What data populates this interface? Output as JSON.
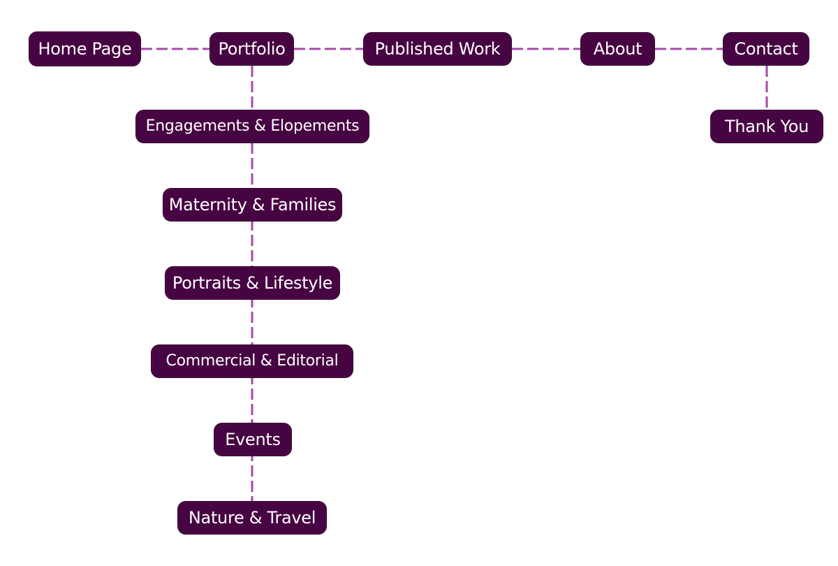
{
  "diagram": {
    "colors": {
      "node_fill": "#470442",
      "node_text": "#ffffff",
      "connector": "#a64aa8",
      "background": "#ffffff"
    },
    "top_level": [
      {
        "id": "home",
        "label": "Home Page"
      },
      {
        "id": "portfolio",
        "label": "Portfolio"
      },
      {
        "id": "published",
        "label": "Published Work"
      },
      {
        "id": "about",
        "label": "About"
      },
      {
        "id": "contact",
        "label": "Contact"
      }
    ],
    "portfolio_children": [
      {
        "id": "engagements",
        "label": "Engagements & Elopements"
      },
      {
        "id": "maternity",
        "label": "Maternity & Families"
      },
      {
        "id": "portraits",
        "label": "Portraits & Lifestyle"
      },
      {
        "id": "commercial",
        "label": "Commercial & Editorial"
      },
      {
        "id": "events",
        "label": "Events"
      },
      {
        "id": "nature",
        "label": "Nature & Travel"
      }
    ],
    "contact_children": [
      {
        "id": "thankyou",
        "label": "Thank You"
      }
    ]
  }
}
